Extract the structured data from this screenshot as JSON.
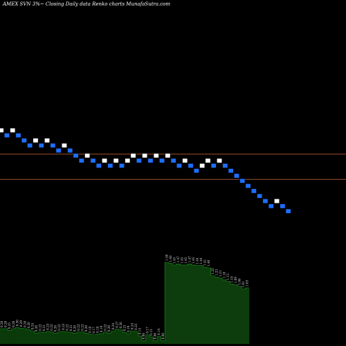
{
  "title": "AMEX  SVN  3%~  Closing Daily data  Renko  charts MunafaSutra.com",
  "colors": {
    "background": "#000000",
    "up_brick": "#ffffff",
    "down_brick": "#1e6fff",
    "brick_border": "#000000",
    "level_line": "#a0522d",
    "volume_fill_dark": "#0a3a0a",
    "volume_fill_bright": "#0d3d0d",
    "volume_stroke": "#1e8c1e"
  },
  "chart_data": {
    "type": "renko",
    "title": "AMEX  SVN  3%~  Closing Daily data  Renko  charts MunafaSutra.com",
    "brick_directions": [
      "up",
      "down",
      "up",
      "down",
      "down",
      "down",
      "up",
      "down",
      "up",
      "down",
      "down",
      "up",
      "down",
      "down",
      "down",
      "up",
      "down",
      "down",
      "up",
      "down",
      "up",
      "down",
      "up",
      "up",
      "down",
      "up",
      "down",
      "up",
      "down",
      "up",
      "down",
      "down",
      "up",
      "down",
      "down",
      "up",
      "up",
      "down",
      "up",
      "down",
      "down",
      "down",
      "down",
      "down",
      "down",
      "down",
      "down",
      "down",
      "up",
      "down",
      "down"
    ],
    "brick_levels": [
      6,
      5,
      6,
      5,
      4,
      3,
      4,
      3,
      4,
      3,
      2,
      3,
      2,
      1,
      0,
      1,
      0,
      -1,
      0,
      -1,
      0,
      -1,
      0,
      1,
      0,
      1,
      0,
      1,
      0,
      1,
      0,
      -1,
      0,
      -1,
      -2,
      -1,
      0,
      -1,
      0,
      -1,
      -2,
      -3,
      -4,
      -5,
      -6,
      -7,
      -8,
      -9,
      -8,
      -9,
      -10
    ],
    "level_lines": [
      1,
      -4
    ],
    "volume_labels": [
      "0.28",
      "0.28",
      "0.25",
      "0.28",
      "0.30",
      "0.29",
      "0.28",
      "0.26",
      "0.24",
      "0.20",
      "0.22",
      "0.21",
      "0.23",
      "0.22",
      "0.20",
      "0.22",
      "0.23",
      "0.22",
      "0.21",
      "0.20",
      "0.22",
      "0.22",
      "0.20",
      "0.18",
      "0.17",
      "0.18",
      "0.19",
      "0.22",
      "0.20",
      "0.24",
      "0.27",
      "0.26",
      "0.21",
      "0.19",
      "0.24",
      "0.23",
      "0.15",
      "0.06",
      "0.17",
      "0.13",
      "0.06",
      "0.14",
      "0.06",
      "1.50",
      "1.48",
      "1.45",
      "1.47",
      "1.45",
      "1.45",
      "1.47",
      "1.45",
      "1.44",
      "1.44",
      "1.41",
      "1.40",
      "1.25",
      "1.23",
      "1.21",
      "1.18",
      "1.15",
      "1.10",
      "1.09",
      "1.06",
      "1.01",
      "1.03"
    ],
    "volume_regime": [
      "dark",
      "dark",
      "dark",
      "dark",
      "dark",
      "dark",
      "dark",
      "dark",
      "dark",
      "dark",
      "dark",
      "dark",
      "dark",
      "dark",
      "dark",
      "dark",
      "dark",
      "dark",
      "dark",
      "dark",
      "dark",
      "dark",
      "dark",
      "dark",
      "dark",
      "dark",
      "dark",
      "dark",
      "dark",
      "dark",
      "dark",
      "dark",
      "dark",
      "dark",
      "dark",
      "dark",
      "dark",
      "dark",
      "dark",
      "dark",
      "dark",
      "dark",
      "dark",
      "bright",
      "bright",
      "bright",
      "bright",
      "bright",
      "bright",
      "bright",
      "bright",
      "bright",
      "bright",
      "bright",
      "bright",
      "bright",
      "bright",
      "bright",
      "bright",
      "bright",
      "bright",
      "bright",
      "bright",
      "bright",
      "bright"
    ]
  }
}
